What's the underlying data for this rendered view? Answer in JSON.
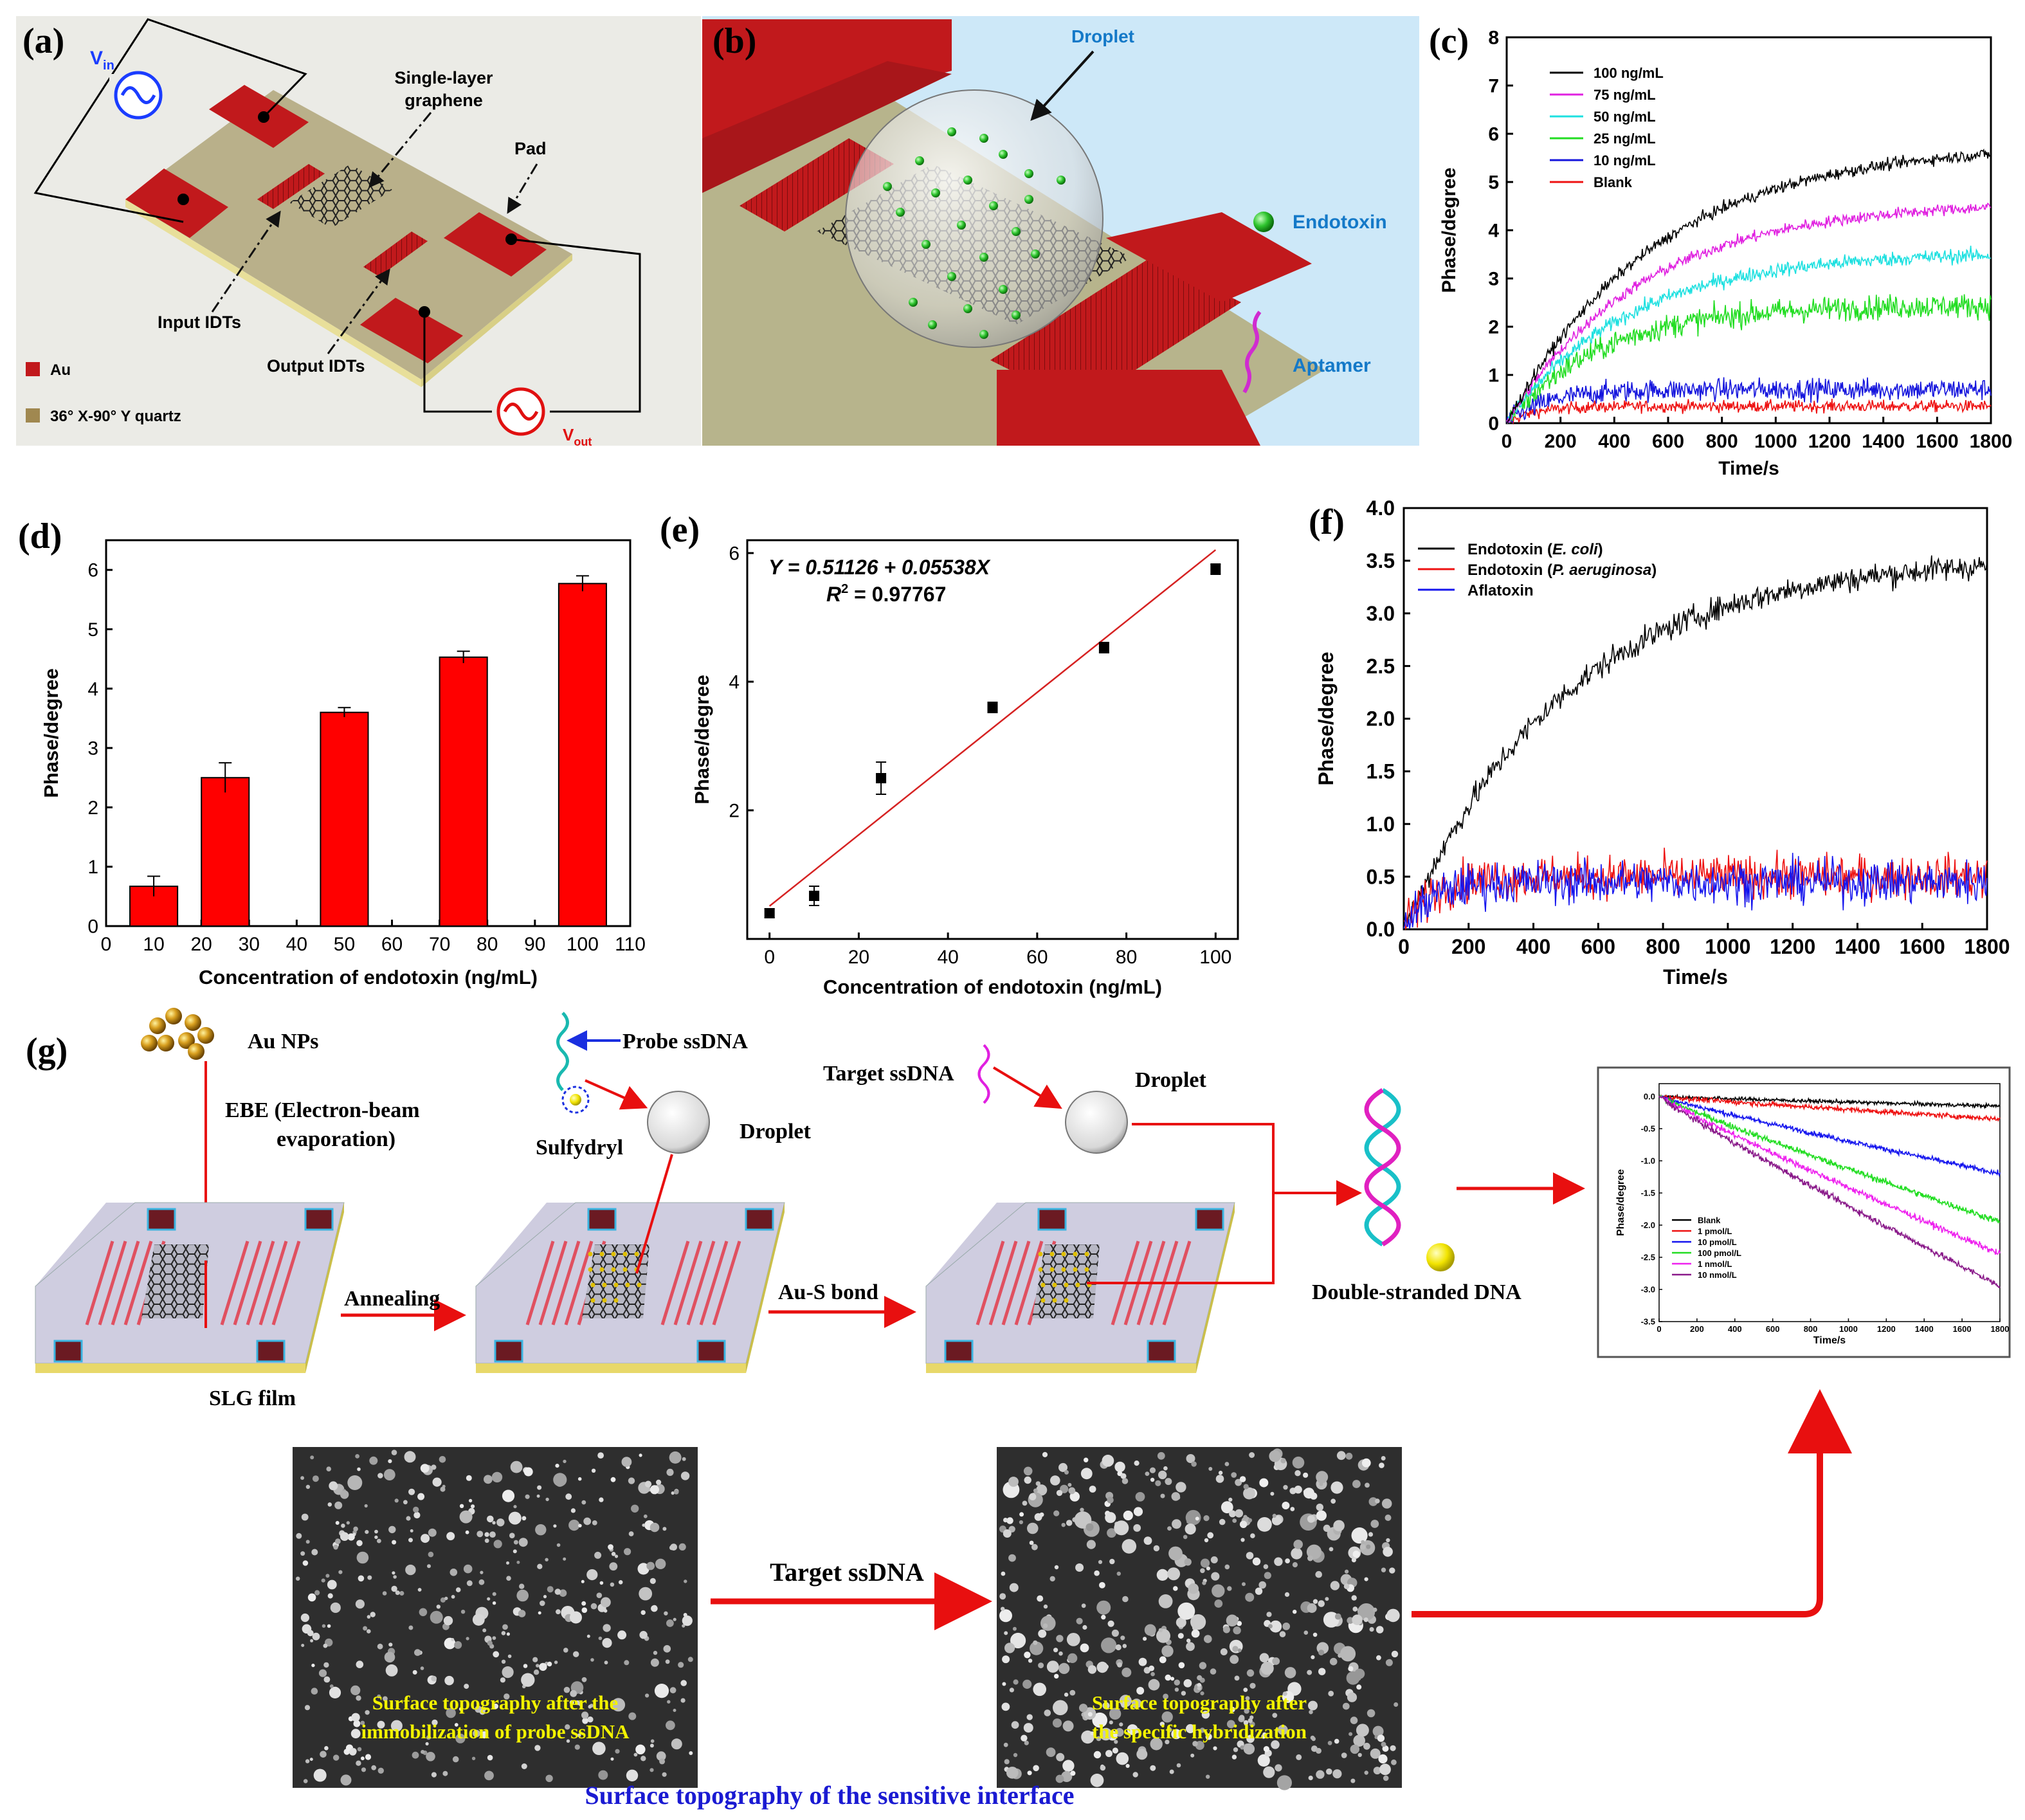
{
  "panel_labels": {
    "a": "(a)",
    "b": "(b)",
    "c": "(c)",
    "d": "(d)",
    "e": "(e)",
    "f": "(f)",
    "g": "(g)"
  },
  "panel_a": {
    "vin": "V",
    "vin_sub": "in",
    "vout": "V",
    "vout_sub": "out",
    "graphene": [
      "Single-layer",
      "graphene"
    ],
    "pad": "Pad",
    "input_idts": "Input IDTs",
    "output_idts": "Output IDTs",
    "legend_au": "Au",
    "legend_quartz": "36° X-90° Y quartz",
    "colors": {
      "electrode": "#c1191c",
      "substrate": "#b9b08a",
      "background": "#ebebe6",
      "source_in": "#1a3cff",
      "source_out": "#e01010"
    }
  },
  "panel_b": {
    "droplet": "Droplet",
    "endotoxin": "Endotoxin",
    "aptamer": "Aptamer",
    "colors": {
      "background": "#cde8f8",
      "label": "#1479c8",
      "particle": "#3ec43e",
      "aptamer": "#d02bd0"
    }
  },
  "chart_data": [
    {
      "id": "c",
      "type": "line",
      "xlabel": "Time/s",
      "ylabel": "Phase/degree",
      "xlim": [
        0,
        1800
      ],
      "ylim": [
        0,
        8
      ],
      "xticks": [
        0,
        200,
        400,
        600,
        800,
        1000,
        1200,
        1400,
        1600,
        1800
      ],
      "yticks": [
        0,
        1,
        2,
        3,
        4,
        5,
        6,
        7,
        8
      ],
      "legend": "top-left",
      "series": [
        {
          "name": "100 ng/mL",
          "color": "#000000",
          "plateau": 5.8,
          "tau": 550,
          "noise": 0.12
        },
        {
          "name": "75 ng/mL",
          "color": "#e020e0",
          "plateau": 4.6,
          "tau": 500,
          "noise": 0.12
        },
        {
          "name": "50 ng/mL",
          "color": "#1de0e0",
          "plateau": 3.55,
          "tau": 450,
          "noise": 0.15
        },
        {
          "name": "25 ng/mL",
          "color": "#22dd22",
          "plateau": 2.45,
          "tau": 350,
          "noise": 0.25
        },
        {
          "name": "10 ng/mL",
          "color": "#1515dd",
          "plateau": 0.7,
          "tau": 150,
          "noise": 0.22
        },
        {
          "name": "Blank",
          "color": "#ee1111",
          "plateau": 0.35,
          "tau": 100,
          "noise": 0.12
        }
      ]
    },
    {
      "id": "d",
      "type": "bar",
      "xlabel": "Concentration of endotoxin (ng/mL)",
      "ylabel": "Phase/degree",
      "xlim": [
        0,
        110
      ],
      "ylim": [
        0,
        6.5
      ],
      "xticks": [
        0,
        10,
        20,
        30,
        40,
        50,
        60,
        70,
        80,
        90,
        100,
        110
      ],
      "yticks": [
        0,
        1,
        2,
        3,
        4,
        5,
        6
      ],
      "bar_color": "#ff0000",
      "x": [
        10,
        25,
        50,
        75,
        100
      ],
      "values": [
        0.67,
        2.5,
        3.6,
        4.53,
        5.77
      ],
      "errors": [
        0.17,
        0.25,
        0.08,
        0.1,
        0.13
      ]
    },
    {
      "id": "e",
      "type": "scatter",
      "xlabel": "Concentration of endotoxin (ng/mL)",
      "ylabel": "Phase/degree",
      "xlim": [
        -5,
        105
      ],
      "ylim": [
        0,
        6.2
      ],
      "xticks": [
        0,
        20,
        40,
        60,
        80,
        100
      ],
      "yticks": [
        2,
        4,
        6
      ],
      "x": [
        0,
        10,
        25,
        50,
        75,
        100
      ],
      "y": [
        0.4,
        0.67,
        2.5,
        3.6,
        4.53,
        5.75
      ],
      "errors": [
        0.07,
        0.15,
        0.25,
        0.08,
        0.08,
        0.08
      ],
      "fit": {
        "intercept": 0.51126,
        "slope": 0.05538,
        "x_range": [
          0,
          100
        ],
        "color": "#d62222"
      },
      "equation": "Y = 0.51126 + 0.05538X",
      "r2_label": "R",
      "r2_sup": "2",
      "r2_value": " = 0.97767"
    },
    {
      "id": "f",
      "type": "line",
      "xlabel": "Time/s",
      "ylabel": "Phase/degree",
      "xlim": [
        0,
        1800
      ],
      "ylim": [
        0,
        4.0
      ],
      "xticks": [
        0,
        200,
        400,
        600,
        800,
        1000,
        1200,
        1400,
        1600,
        1800
      ],
      "yticks": [
        "0.0",
        "0.5",
        "1.0",
        "1.5",
        "2.0",
        "2.5",
        "3.0",
        "3.5",
        "4.0"
      ],
      "legend": "top-left",
      "series": [
        {
          "name": "Endotoxin (E. coli)",
          "prefix": "Endotoxin (",
          "italic": "E. coli",
          "suffix": ")",
          "color": "#000000",
          "plateau": 3.55,
          "tau": 500,
          "noise": 0.12
        },
        {
          "name": "Endotoxin (P. aeruginosa)",
          "prefix": "Endotoxin (",
          "italic": "P. aeruginosa",
          "suffix": ")",
          "color": "#ee1111",
          "plateau": 0.5,
          "tau": 80,
          "noise": 0.2
        },
        {
          "name": "Aflatoxin",
          "prefix": "Aflatoxin",
          "italic": "",
          "suffix": "",
          "color": "#1515ee",
          "plateau": 0.45,
          "tau": 80,
          "noise": 0.2
        }
      ]
    },
    {
      "id": "g_inset",
      "type": "line",
      "xlabel": "Time/s",
      "ylabel": "Phase/degree",
      "xlim": [
        0,
        1800
      ],
      "ylim": [
        -3.5,
        0.2
      ],
      "xticks": [
        0,
        200,
        400,
        600,
        800,
        1000,
        1200,
        1400,
        1600,
        1800
      ],
      "yticks": [
        "0.0",
        "-0.5",
        "-1.0",
        "-1.5",
        "-2.0",
        "-2.5",
        "-3.0",
        "-3.5"
      ],
      "legend": "bottom-left",
      "series": [
        {
          "name": "Blank",
          "color": "#000000",
          "end": -0.15,
          "noise": 0.03
        },
        {
          "name": "1 pmol/L",
          "color": "#ee1111",
          "end": -0.35,
          "noise": 0.04
        },
        {
          "name": "10 pmol/L",
          "color": "#1515ee",
          "end": -1.2,
          "noise": 0.04
        },
        {
          "name": "100 pmol/L",
          "color": "#22dd22",
          "end": -1.95,
          "noise": 0.05
        },
        {
          "name": "1 nmol/L",
          "color": "#ee22ee",
          "end": -2.45,
          "noise": 0.05
        },
        {
          "name": "10 nmol/L",
          "color": "#8a1a8a",
          "end": -2.95,
          "noise": 0.05
        }
      ]
    }
  ],
  "panel_g": {
    "au_nps": "Au NPs",
    "ebe": [
      "EBE (Electron-beam",
      "evaporation)"
    ],
    "probe_ssdna": "Probe ssDNA",
    "sulfydryl": "Sulfydryl",
    "droplet1": "Droplet",
    "target_ssdna": "Target ssDNA",
    "droplet2": "Droplet",
    "annealing": "Annealing",
    "au_s_bond": "Au-S bond",
    "double_stranded": "Double-stranded DNA",
    "slg_film": "SLG film",
    "sem_arrow_label": "Target ssDNA",
    "sem1_caption": [
      "Surface topography after the",
      "immobilization of probe ssDNA"
    ],
    "sem2_caption": [
      "Surface topography after",
      "the specific hybridization"
    ],
    "bottom_title": "Surface topography of the sensitive interface",
    "colors": {
      "arrow": "#e80f0f",
      "caption": "#f2f200",
      "title": "#1a1ad2",
      "sem_bg": "#2e2e2e"
    }
  }
}
